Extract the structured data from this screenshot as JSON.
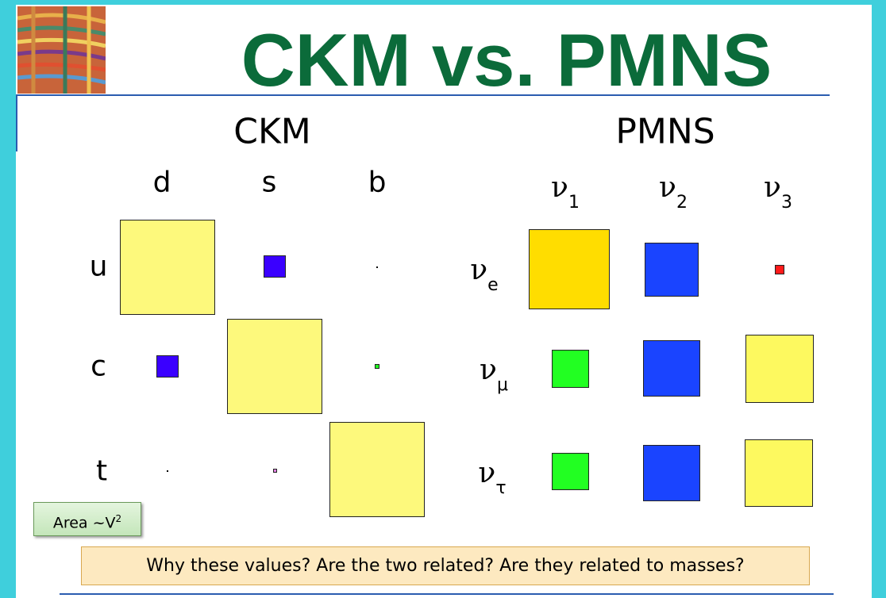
{
  "title": "CKM vs. PMNS",
  "ckm": {
    "heading": "CKM",
    "columns": [
      "d",
      "s",
      "b"
    ],
    "rows": [
      "u",
      "c",
      "t"
    ]
  },
  "pmns": {
    "heading": "PMNS",
    "columns": [
      {
        "symbol": "ν",
        "sub": "1"
      },
      {
        "symbol": "ν",
        "sub": "2"
      },
      {
        "symbol": "ν",
        "sub": "3"
      }
    ],
    "rows": [
      {
        "symbol": "ν",
        "sub": "e"
      },
      {
        "symbol": "ν",
        "sub": "μ"
      },
      {
        "symbol": "ν",
        "sub": "τ"
      }
    ]
  },
  "note": {
    "text": "Area ~V",
    "sup": "2"
  },
  "question": "Why these values? Are the two related? Are they related to masses?"
}
